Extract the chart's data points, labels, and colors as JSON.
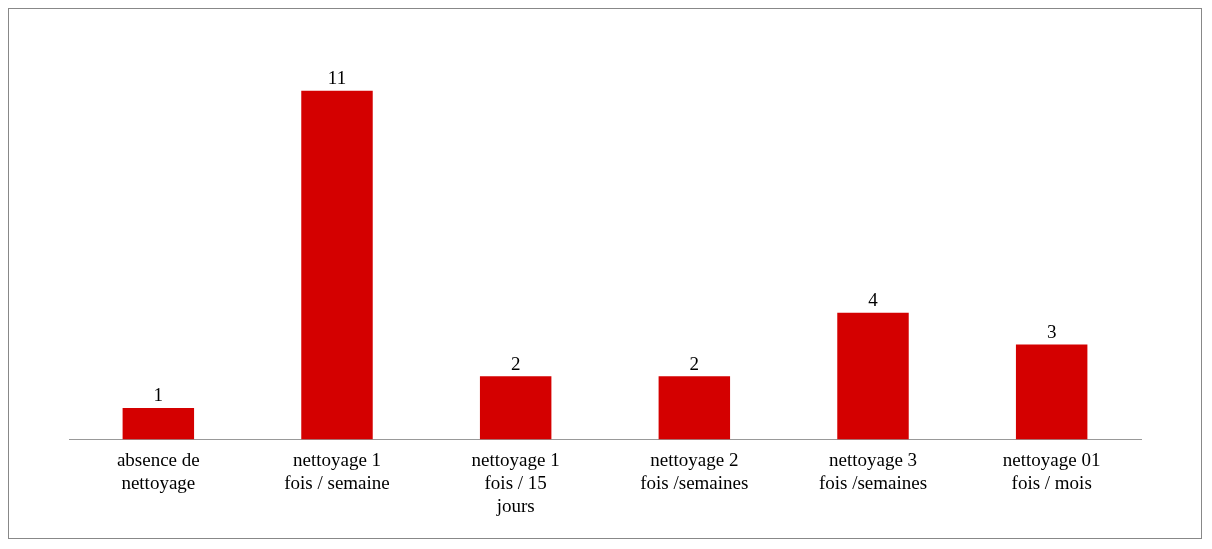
{
  "chart_data": {
    "type": "bar",
    "categories": [
      "absence de nettoyage",
      "nettoyage 1 fois / semaine",
      "nettoyage 1 fois / 15 jours",
      "nettoyage 2 fois /semaines",
      "nettoyage 3 fois /semaines",
      "nettoyage 01 fois / mois"
    ],
    "values": [
      1,
      11,
      2,
      2,
      4,
      3
    ],
    "color": "#d40000",
    "data_labels": true,
    "grid": false,
    "legend": false
  }
}
